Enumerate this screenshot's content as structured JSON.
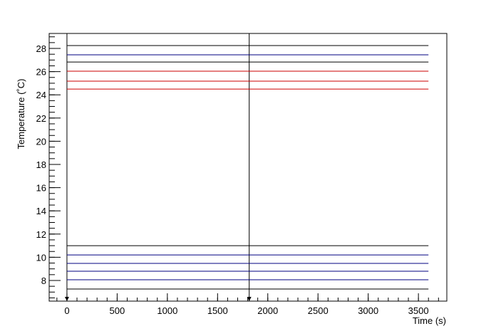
{
  "chart_data": {
    "type": "line",
    "x_label": "Time (s)",
    "y_label": "Temperature (˚C)",
    "x": [
      0,
      3600
    ],
    "series": [
      {
        "color": "#000000",
        "values": [
          28.25,
          28.25
        ]
      },
      {
        "color": "#000080",
        "values": [
          27.45,
          27.45
        ]
      },
      {
        "color": "#000000",
        "values": [
          26.83,
          26.83
        ]
      },
      {
        "color": "#cc0000",
        "values": [
          26.04,
          26.04
        ]
      },
      {
        "color": "#cc0000",
        "values": [
          25.18,
          25.18
        ]
      },
      {
        "color": "#cc0000",
        "values": [
          24.5,
          24.5
        ]
      },
      {
        "color": "#000000",
        "values": [
          11.0,
          11.0
        ]
      },
      {
        "color": "#000080",
        "values": [
          10.2,
          10.2
        ]
      },
      {
        "color": "#000080",
        "values": [
          9.47,
          9.47
        ]
      },
      {
        "color": "#000080",
        "values": [
          8.8,
          8.8
        ]
      },
      {
        "color": "#000080",
        "values": [
          8.06,
          8.06
        ]
      },
      {
        "color": "#000000",
        "values": [
          7.26,
          7.26
        ]
      }
    ],
    "vlines": [
      0,
      1815
    ],
    "xlim": [
      -177,
      3783
    ],
    "ylim": [
      6.22,
      29.29
    ],
    "xticks": [
      0,
      500,
      1000,
      1500,
      2000,
      2500,
      3000,
      3500
    ],
    "yticks": [
      8,
      10,
      12,
      14,
      16,
      18,
      20,
      22,
      24,
      26,
      28
    ]
  }
}
